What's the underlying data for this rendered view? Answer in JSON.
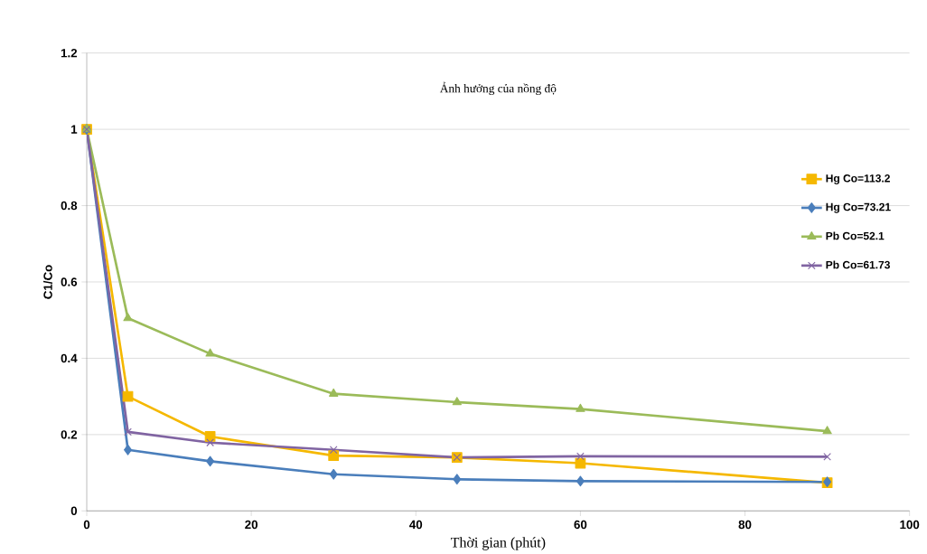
{
  "chart_data": {
    "type": "line",
    "title": "Ảnh hưởng của nồng độ",
    "xlabel": "Thời gian (phút)",
    "ylabel": "C1/Co",
    "x": [
      0,
      5,
      15,
      30,
      45,
      60,
      90
    ],
    "series": [
      {
        "name": "Hg Co=113.2",
        "color": "#f5b800",
        "marker": "square",
        "values": [
          1,
          0.3,
          0.195,
          0.145,
          0.14,
          0.125,
          0.074
        ]
      },
      {
        "name": "Hg Co=73.21",
        "color": "#4a7ebb",
        "marker": "diamond",
        "values": [
          1,
          0.16,
          0.13,
          0.096,
          0.083,
          0.078,
          0.076
        ]
      },
      {
        "name": "Pb Co=52.1",
        "color": "#9bbb59",
        "marker": "triangle",
        "values": [
          1,
          0.505,
          0.412,
          0.307,
          0.285,
          0.267,
          0.209
        ]
      },
      {
        "name": "Pb Co=61.73",
        "color": "#8064a2",
        "marker": "cross",
        "values": [
          1,
          0.207,
          0.179,
          0.16,
          0.14,
          0.143,
          0.142
        ]
      }
    ],
    "xlim": [
      0,
      100
    ],
    "xticks": [
      0,
      20,
      40,
      60,
      80,
      100
    ],
    "ylim": [
      0,
      1.2
    ],
    "yticks": [
      0,
      0.2,
      0.4,
      0.6,
      0.8,
      1,
      1.2
    ],
    "grid": "y",
    "legend": "right"
  }
}
